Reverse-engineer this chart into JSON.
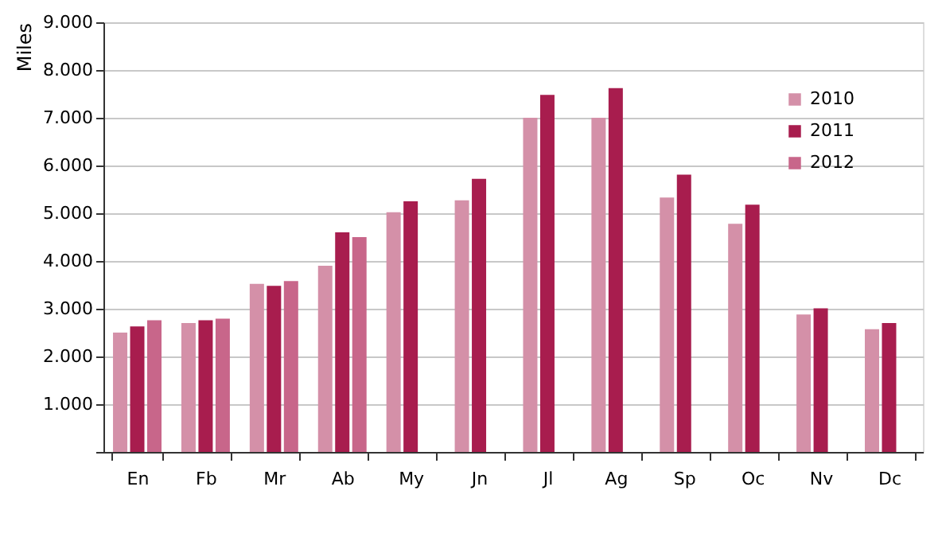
{
  "chart_data": {
    "type": "bar",
    "ylabel": "Miles",
    "categories": [
      "En",
      "Fb",
      "Mr",
      "Ab",
      "My",
      "Jn",
      "Jl",
      "Ag",
      "Sp",
      "Oc",
      "Nv",
      "Dc"
    ],
    "series": [
      {
        "name": "2010",
        "color": "#d490a8",
        "values": [
          2500,
          2700,
          3520,
          3900,
          5020,
          5270,
          7000,
          7000,
          5330,
          4780,
          2880,
          2570
        ]
      },
      {
        "name": "2011",
        "color": "#a81d4e",
        "values": [
          2630,
          2760,
          3480,
          4600,
          5250,
          5720,
          7480,
          7620,
          5810,
          5180,
          3010,
          2700
        ]
      },
      {
        "name": "2012",
        "color": "#c8668a",
        "values": [
          2760,
          2790,
          3580,
          4500,
          null,
          null,
          null,
          null,
          null,
          null,
          null,
          null
        ]
      }
    ],
    "ylim": [
      0,
      9000
    ],
    "yticks": [
      {
        "value": 0,
        "label": null
      },
      {
        "value": 1000,
        "label": "1.000"
      },
      {
        "value": 2000,
        "label": "2.000"
      },
      {
        "value": 3000,
        "label": "3.000"
      },
      {
        "value": 4000,
        "label": "4.000"
      },
      {
        "value": 5000,
        "label": "5.000"
      },
      {
        "value": 6000,
        "label": "6.000"
      },
      {
        "value": 7000,
        "label": "7.000"
      },
      {
        "value": 8000,
        "label": "8.000"
      },
      {
        "value": 9000,
        "label": "9.000"
      }
    ],
    "grid": "y",
    "legend": "top right"
  }
}
